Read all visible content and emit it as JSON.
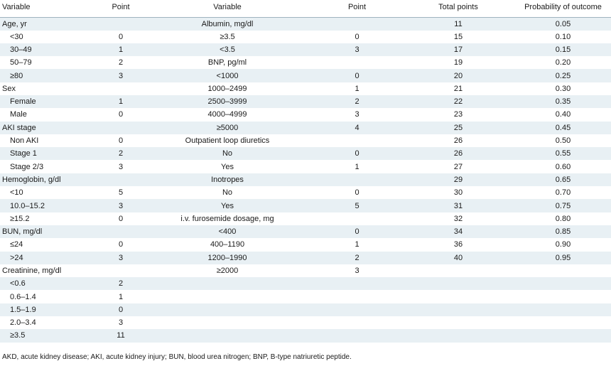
{
  "headers": [
    "Variable",
    "Point",
    "Variable",
    "Point",
    "Total points",
    "Probability of outcome"
  ],
  "rows": [
    [
      {
        "t": "Age, yr",
        "sub": false
      },
      {
        "t": ""
      },
      {
        "t": "Albumin, mg/dl"
      },
      {
        "t": ""
      },
      {
        "t": "11"
      },
      {
        "t": "0.05"
      }
    ],
    [
      {
        "t": "<30",
        "sub": true
      },
      {
        "t": "0"
      },
      {
        "t": "≥3.5"
      },
      {
        "t": "0"
      },
      {
        "t": "15"
      },
      {
        "t": "0.10"
      }
    ],
    [
      {
        "t": "30–49",
        "sub": true
      },
      {
        "t": "1"
      },
      {
        "t": "<3.5"
      },
      {
        "t": "3"
      },
      {
        "t": "17"
      },
      {
        "t": "0.15"
      }
    ],
    [
      {
        "t": "50–79",
        "sub": true
      },
      {
        "t": "2"
      },
      {
        "t": "BNP, pg/ml"
      },
      {
        "t": ""
      },
      {
        "t": "19"
      },
      {
        "t": "0.20"
      }
    ],
    [
      {
        "t": "≥80",
        "sub": true
      },
      {
        "t": "3"
      },
      {
        "t": "<1000"
      },
      {
        "t": "0"
      },
      {
        "t": "20"
      },
      {
        "t": "0.25"
      }
    ],
    [
      {
        "t": "Sex",
        "sub": false
      },
      {
        "t": ""
      },
      {
        "t": "1000–2499"
      },
      {
        "t": "1"
      },
      {
        "t": "21"
      },
      {
        "t": "0.30"
      }
    ],
    [
      {
        "t": "Female",
        "sub": true
      },
      {
        "t": "1"
      },
      {
        "t": "2500–3999"
      },
      {
        "t": "2"
      },
      {
        "t": "22"
      },
      {
        "t": "0.35"
      }
    ],
    [
      {
        "t": "Male",
        "sub": true
      },
      {
        "t": "0"
      },
      {
        "t": "4000–4999"
      },
      {
        "t": "3"
      },
      {
        "t": "23"
      },
      {
        "t": "0.40"
      }
    ],
    [
      {
        "t": "AKI stage",
        "sub": false
      },
      {
        "t": ""
      },
      {
        "t": "≥5000"
      },
      {
        "t": "4"
      },
      {
        "t": "25"
      },
      {
        "t": "0.45"
      }
    ],
    [
      {
        "t": "Non AKI",
        "sub": true
      },
      {
        "t": "0"
      },
      {
        "t": "Outpatient loop diuretics"
      },
      {
        "t": ""
      },
      {
        "t": "26"
      },
      {
        "t": "0.50"
      }
    ],
    [
      {
        "t": "Stage 1",
        "sub": true
      },
      {
        "t": "2"
      },
      {
        "t": "No"
      },
      {
        "t": "0"
      },
      {
        "t": "26"
      },
      {
        "t": "0.55"
      }
    ],
    [
      {
        "t": "Stage 2/3",
        "sub": true
      },
      {
        "t": "3"
      },
      {
        "t": "Yes"
      },
      {
        "t": "1"
      },
      {
        "t": "27"
      },
      {
        "t": "0.60"
      }
    ],
    [
      {
        "t": "Hemoglobin, g/dl",
        "sub": false
      },
      {
        "t": ""
      },
      {
        "t": "Inotropes"
      },
      {
        "t": ""
      },
      {
        "t": "29"
      },
      {
        "t": "0.65"
      }
    ],
    [
      {
        "t": "<10",
        "sub": true
      },
      {
        "t": "5"
      },
      {
        "t": "No"
      },
      {
        "t": "0"
      },
      {
        "t": "30"
      },
      {
        "t": "0.70"
      }
    ],
    [
      {
        "t": "10.0–15.2",
        "sub": true
      },
      {
        "t": "3"
      },
      {
        "t": "Yes"
      },
      {
        "t": "5"
      },
      {
        "t": "31"
      },
      {
        "t": "0.75"
      }
    ],
    [
      {
        "t": "≥15.2",
        "sub": true
      },
      {
        "t": "0"
      },
      {
        "t": "i.v. furosemide dosage, mg"
      },
      {
        "t": ""
      },
      {
        "t": "32"
      },
      {
        "t": "0.80"
      }
    ],
    [
      {
        "t": "BUN, mg/dl",
        "sub": false
      },
      {
        "t": ""
      },
      {
        "t": "<400"
      },
      {
        "t": "0"
      },
      {
        "t": "34"
      },
      {
        "t": "0.85"
      }
    ],
    [
      {
        "t": "≤24",
        "sub": true
      },
      {
        "t": "0"
      },
      {
        "t": "400–1190"
      },
      {
        "t": "1"
      },
      {
        "t": "36"
      },
      {
        "t": "0.90"
      }
    ],
    [
      {
        "t": ">24",
        "sub": true
      },
      {
        "t": "3"
      },
      {
        "t": "1200–1990"
      },
      {
        "t": "2"
      },
      {
        "t": "40"
      },
      {
        "t": "0.95"
      }
    ],
    [
      {
        "t": "Creatinine, mg/dl",
        "sub": false
      },
      {
        "t": ""
      },
      {
        "t": "≥2000"
      },
      {
        "t": "3"
      },
      {
        "t": ""
      },
      {
        "t": ""
      }
    ],
    [
      {
        "t": "<0.6",
        "sub": true
      },
      {
        "t": "2"
      },
      {
        "t": ""
      },
      {
        "t": ""
      },
      {
        "t": ""
      },
      {
        "t": ""
      }
    ],
    [
      {
        "t": "0.6–1.4",
        "sub": true
      },
      {
        "t": "1"
      },
      {
        "t": ""
      },
      {
        "t": ""
      },
      {
        "t": ""
      },
      {
        "t": ""
      }
    ],
    [
      {
        "t": "1.5–1.9",
        "sub": true
      },
      {
        "t": "0"
      },
      {
        "t": ""
      },
      {
        "t": ""
      },
      {
        "t": ""
      },
      {
        "t": ""
      }
    ],
    [
      {
        "t": "2.0–3.4",
        "sub": true
      },
      {
        "t": "3"
      },
      {
        "t": ""
      },
      {
        "t": ""
      },
      {
        "t": ""
      },
      {
        "t": ""
      }
    ],
    [
      {
        "t": "≥3.5",
        "sub": true
      },
      {
        "t": "11"
      },
      {
        "t": ""
      },
      {
        "t": ""
      },
      {
        "t": ""
      },
      {
        "t": ""
      }
    ]
  ],
  "footnote": "AKD, acute kidney disease; AKI, acute kidney injury; BUN, blood urea nitrogen; BNP, B-type natriuretic peptide.",
  "colors": {
    "band": "#e8f0f4",
    "rule": "#9fb4bf"
  }
}
